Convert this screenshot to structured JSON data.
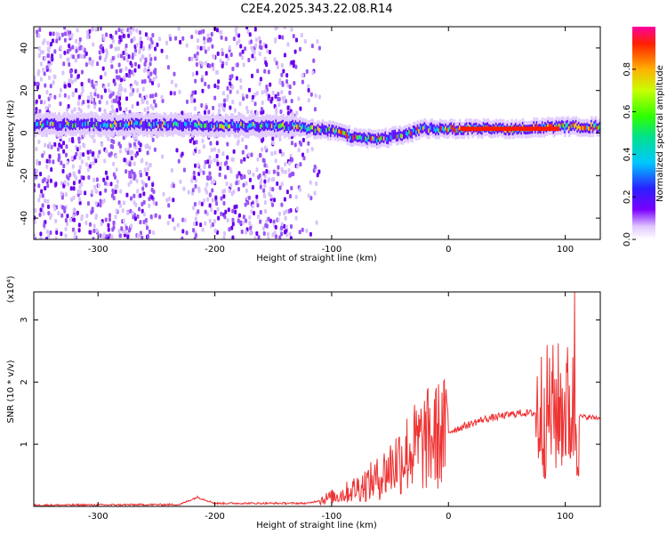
{
  "title": "C2E4.2025.343.22.08.R14",
  "chart_data": [
    {
      "type": "heatmap",
      "xlabel": "Height of straight line (km)",
      "ylabel": "Frequency (Hz)",
      "xlim": [
        -355,
        130
      ],
      "ylim": [
        -50,
        50
      ],
      "xticks": [
        -300,
        -200,
        -100,
        0,
        100
      ],
      "xtick_labels": [
        "-300",
        "-200",
        "-100",
        "0",
        "100"
      ],
      "yticks": [
        -40,
        -20,
        0,
        20,
        40
      ],
      "ytick_labels": [
        "-40",
        "-20",
        "0",
        "20",
        "40"
      ],
      "colorbar": {
        "label": "Normalized spectral amplitude",
        "range": [
          0,
          1
        ],
        "ticks": [
          0.0,
          0.2,
          0.4,
          0.6,
          0.8
        ],
        "tick_labels": [
          "0.0",
          "0.2",
          "0.4",
          "0.6",
          "0.8"
        ]
      },
      "band_center": [
        {
          "x": -355,
          "y": 4
        },
        {
          "x": -250,
          "y": 4
        },
        {
          "x": -130,
          "y": 3
        },
        {
          "x": -100,
          "y": 1
        },
        {
          "x": -80,
          "y": -2
        },
        {
          "x": -60,
          "y": -3
        },
        {
          "x": -40,
          "y": -1
        },
        {
          "x": -20,
          "y": 2
        },
        {
          "x": 0,
          "y": 2
        },
        {
          "x": 50,
          "y": 2
        },
        {
          "x": 100,
          "y": 3
        },
        {
          "x": 130,
          "y": 3
        }
      ],
      "grid": false
    },
    {
      "type": "line",
      "xlabel": "Height of straight line (km)",
      "ylabel": "SNR (10 * v/v)",
      "yscale_note": "(x10⁴)",
      "xlim": [
        -355,
        130
      ],
      "ylim": [
        0,
        3.45
      ],
      "xticks": [
        -300,
        -200,
        -100,
        0,
        100
      ],
      "xtick_labels": [
        "-300",
        "-200",
        "-100",
        "0",
        "100"
      ],
      "yticks": [
        1,
        2,
        3
      ],
      "ytick_labels": [
        "1",
        "2",
        "3"
      ],
      "series": [
        {
          "color": "#ee3333",
          "envelope": [
            {
              "x": -355,
              "y": 0.02
            },
            {
              "x": -230,
              "y": 0.03
            },
            {
              "x": -215,
              "y": 0.15
            },
            {
              "x": -200,
              "y": 0.05
            },
            {
              "x": -120,
              "y": 0.05
            },
            {
              "x": -90,
              "y": 0.2
            },
            {
              "x": -60,
              "y": 0.45
            },
            {
              "x": -40,
              "y": 0.8
            },
            {
              "x": -20,
              "y": 1.05
            },
            {
              "x": 0,
              "y": 1.2
            },
            {
              "x": 30,
              "y": 1.4
            },
            {
              "x": 60,
              "y": 1.5
            },
            {
              "x": 80,
              "y": 1.5
            },
            {
              "x": 100,
              "y": 1.6
            },
            {
              "x": 110,
              "y": 1.45
            },
            {
              "x": 130,
              "y": 1.42
            }
          ],
          "peak": {
            "x": 108,
            "y": 3.45
          }
        }
      ],
      "grid": false
    }
  ]
}
